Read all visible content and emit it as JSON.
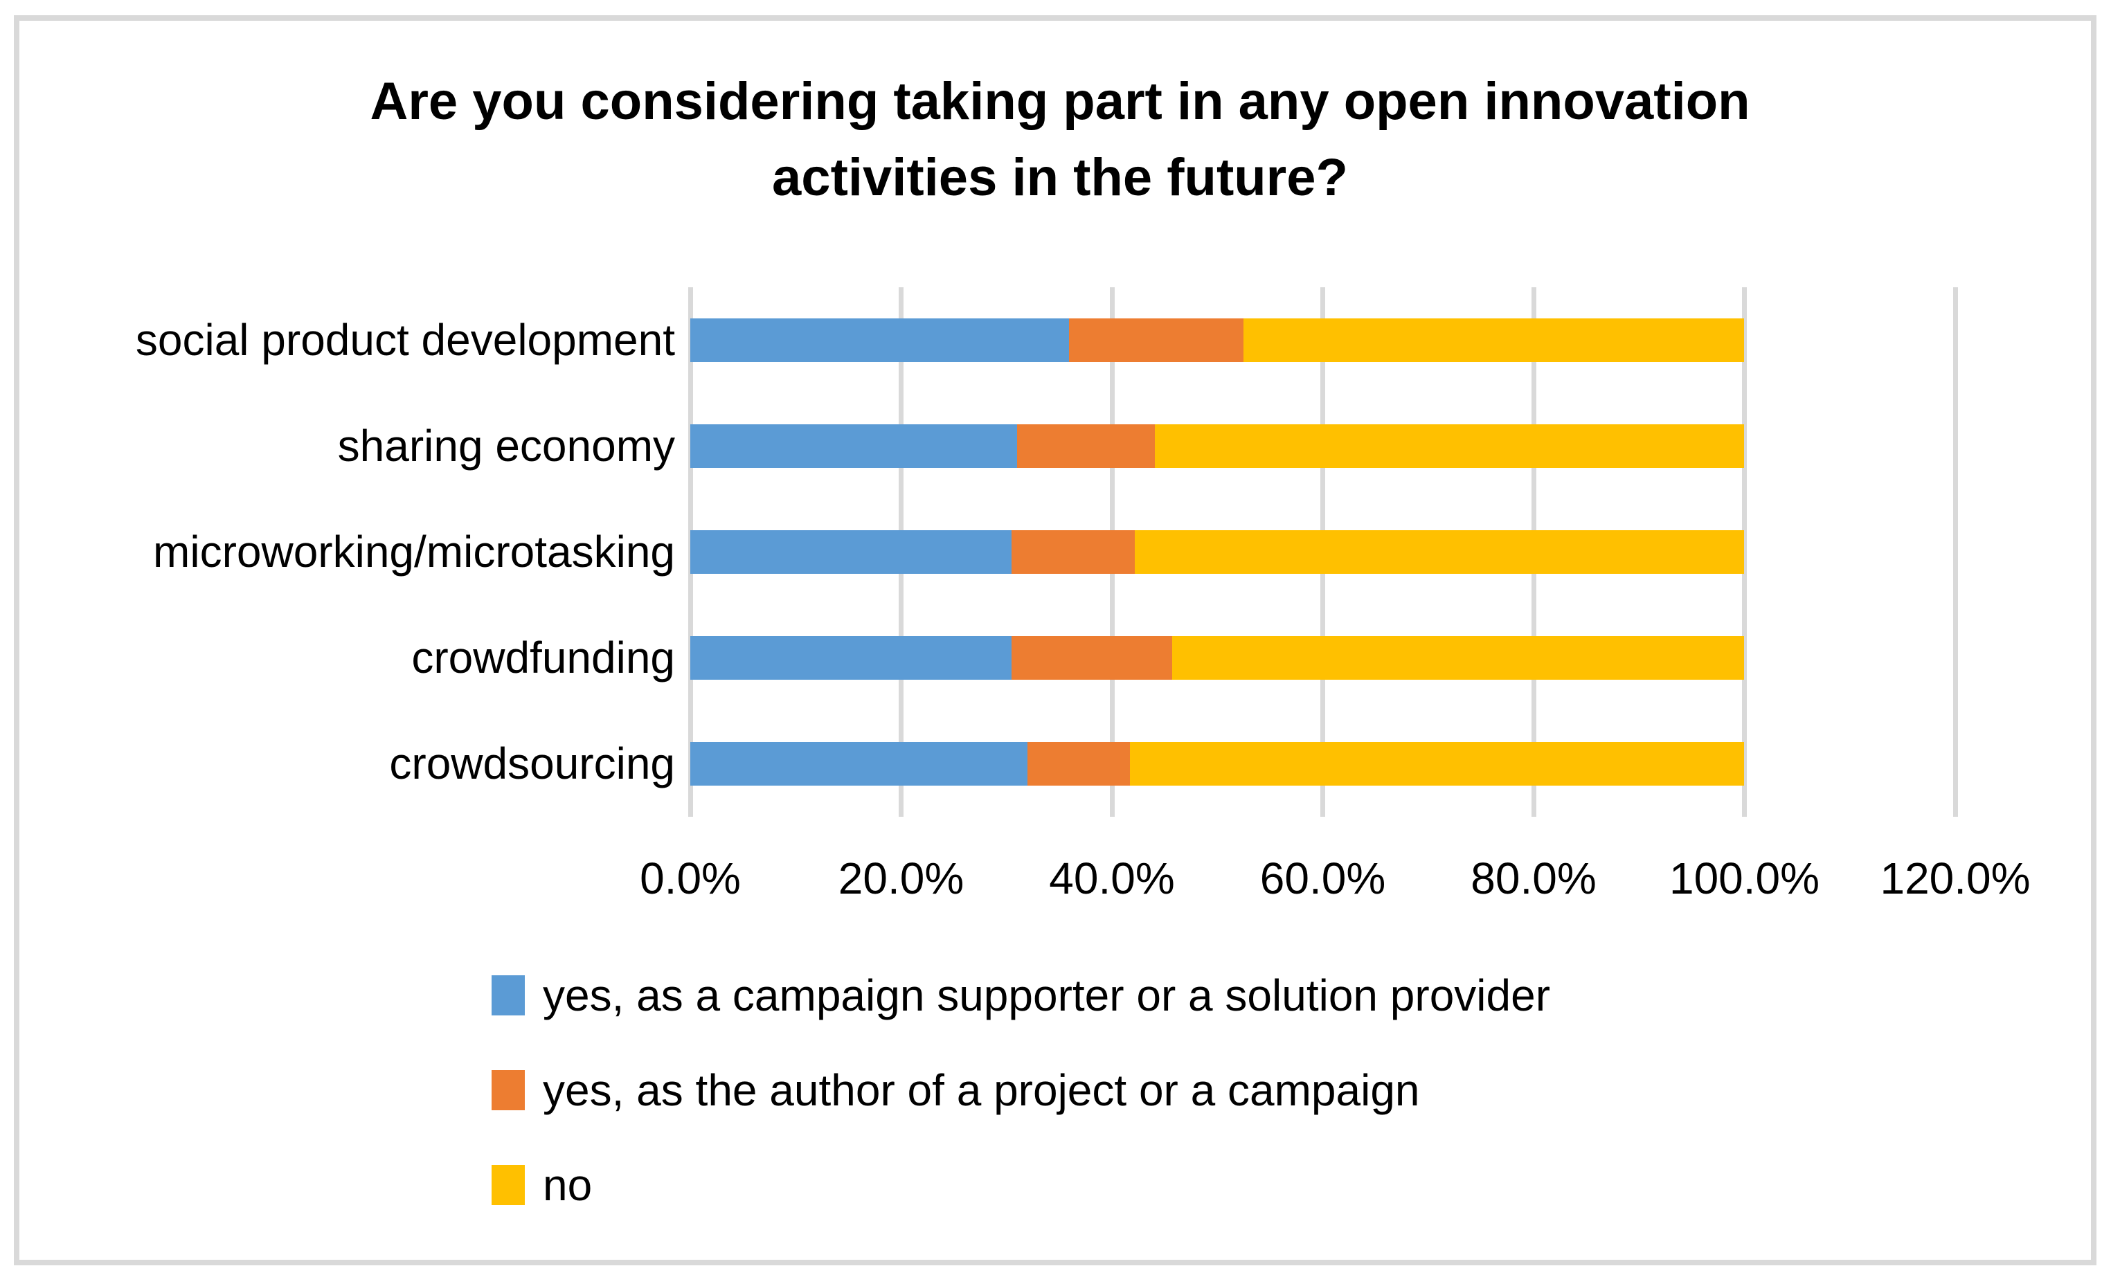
{
  "figure": {
    "background_color": "#ffffff",
    "border_color": "#d9d9d9",
    "gridline_color": "#d9d9d9",
    "text_color": "#000000"
  },
  "chart_data": {
    "type": "bar",
    "orientation": "horizontal-stacked",
    "title": "Are you considering taking part in any open innovation activities in the future?",
    "categories": [
      "social product development",
      "sharing economy",
      "microworking/microtasking",
      "crowdfunding",
      "crowdsourcing"
    ],
    "series": [
      {
        "name": "yes, as a campaign supporter or a solution provider",
        "color": "#5b9bd5",
        "values": [
          35.9,
          31.0,
          30.5,
          30.5,
          32.0
        ]
      },
      {
        "name": "yes, as the author of a project or a campaign",
        "color": "#ed7d31",
        "values": [
          16.6,
          13.1,
          11.7,
          15.2,
          9.7
        ]
      },
      {
        "name": "no",
        "color": "#ffc000",
        "values": [
          47.5,
          55.9,
          57.8,
          54.3,
          58.3
        ]
      }
    ],
    "x_axis": {
      "min": 0,
      "max": 120,
      "step": 20,
      "unit": "%",
      "tick_labels": [
        "0.0%",
        "20.0%",
        "40.0%",
        "60.0%",
        "80.0%",
        "100.0%",
        "120.0%"
      ]
    },
    "grid": true,
    "legend_position": "bottom-left"
  }
}
